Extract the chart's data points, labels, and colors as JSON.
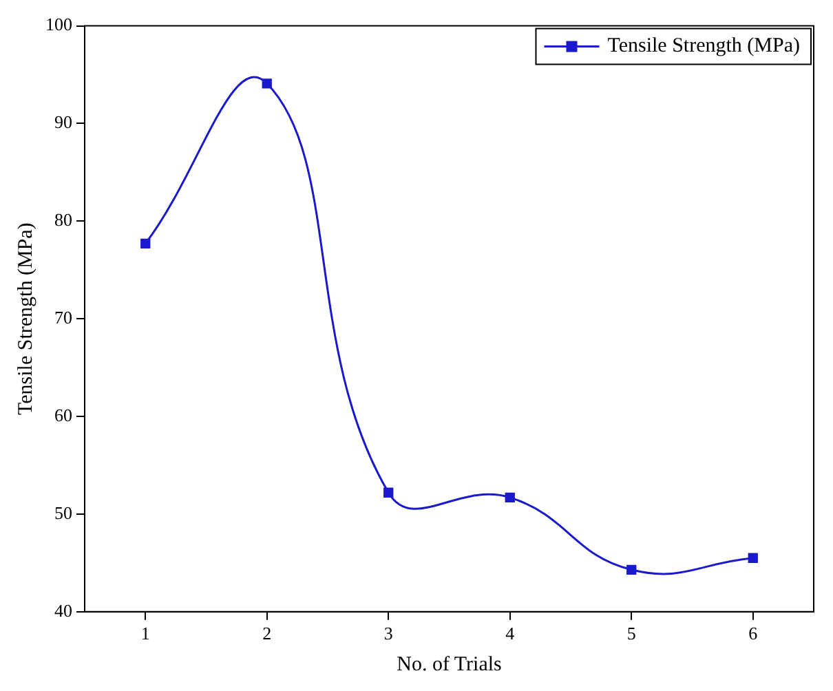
{
  "chart_data": {
    "type": "line",
    "xlabel": "No. of Trials",
    "ylabel": "Tensile Strength (MPa)",
    "x": [
      1,
      2,
      3,
      4,
      5,
      6
    ],
    "series": [
      {
        "name": "Tensile Strength (MPa)",
        "color": "#1a1acc",
        "values": [
          77.7,
          94.1,
          52.2,
          51.7,
          44.3,
          45.5
        ]
      }
    ],
    "xlim": [
      0.5,
      6.5
    ],
    "xticks": [
      1,
      2,
      3,
      4,
      5,
      6
    ],
    "ylim": [
      40,
      100
    ],
    "yticks": [
      40,
      50,
      60,
      70,
      80,
      90,
      100
    ],
    "grid": false,
    "legend": "top right",
    "marker": "square",
    "line_style": "solid"
  }
}
